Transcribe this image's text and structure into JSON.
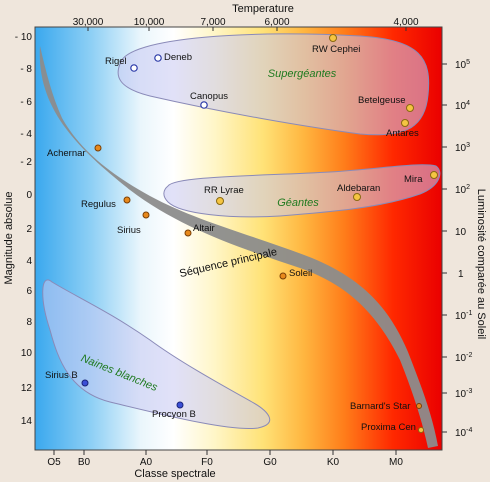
{
  "diagram": {
    "top_axis": {
      "title": "Temperature",
      "ticks": [
        "30,000",
        "10,000",
        "7,000",
        "6,000",
        "4,000"
      ]
    },
    "left_axis": {
      "title": "Magnitude absolue",
      "ticks": [
        "- 10",
        "- 8",
        "- 6",
        "- 4",
        "- 2",
        "0",
        "2",
        "4",
        "6",
        "8",
        "10",
        "12",
        "14"
      ]
    },
    "right_axis": {
      "title": "Luminosité comparée au Soleil",
      "ticks": [
        "10^5",
        "10^4",
        "10^3",
        "10^2",
        "10",
        "1",
        "10^-1",
        "10^-2",
        "10^-3",
        "10^-4"
      ],
      "tick_base": [
        "10",
        "10",
        "10",
        "10",
        "10",
        "1",
        "10",
        "10",
        "10",
        "10"
      ],
      "tick_exp": [
        "5",
        "4",
        "3",
        "2",
        "",
        "",
        "-1",
        "-2",
        "-3",
        "-4"
      ]
    },
    "bottom_axis": {
      "title": "Classe spectrale",
      "ticks": [
        "O5",
        "B0",
        "A0",
        "F0",
        "G0",
        "K0",
        "M0"
      ]
    },
    "regions": {
      "supergiants": "Supergéantes",
      "giants": "Géantes",
      "main_sequence": "Séquence principale",
      "white_dwarfs": "Naines blanches"
    },
    "stars": [
      {
        "name": "Rigel",
        "color": "#ffffff"
      },
      {
        "name": "Deneb",
        "color": "#ffffff"
      },
      {
        "name": "RW Cephei",
        "color": "#f5c542"
      },
      {
        "name": "Canopus",
        "color": "#ffffff"
      },
      {
        "name": "Betelgeuse",
        "color": "#f5c542"
      },
      {
        "name": "Antares",
        "color": "#f5c542"
      },
      {
        "name": "Achernar",
        "color": "#e8891c"
      },
      {
        "name": "Mira",
        "color": "#f5c542"
      },
      {
        "name": "RR Lyrae",
        "color": "#f5c542"
      },
      {
        "name": "Aldebaran",
        "color": "#f5c542"
      },
      {
        "name": "Regulus",
        "color": "#e8891c"
      },
      {
        "name": "Sirius",
        "color": "#e8891c"
      },
      {
        "name": "Altair",
        "color": "#e8891c"
      },
      {
        "name": "Soleil",
        "color": "#e8891c"
      },
      {
        "name": "Sirius B",
        "color": "#3a4fd6"
      },
      {
        "name": "Procyon B",
        "color": "#3a4fd6"
      },
      {
        "name": "Barnard's Star",
        "color": "#e8891c"
      },
      {
        "name": "Proxima Cen",
        "color": "#f5c542"
      }
    ]
  }
}
